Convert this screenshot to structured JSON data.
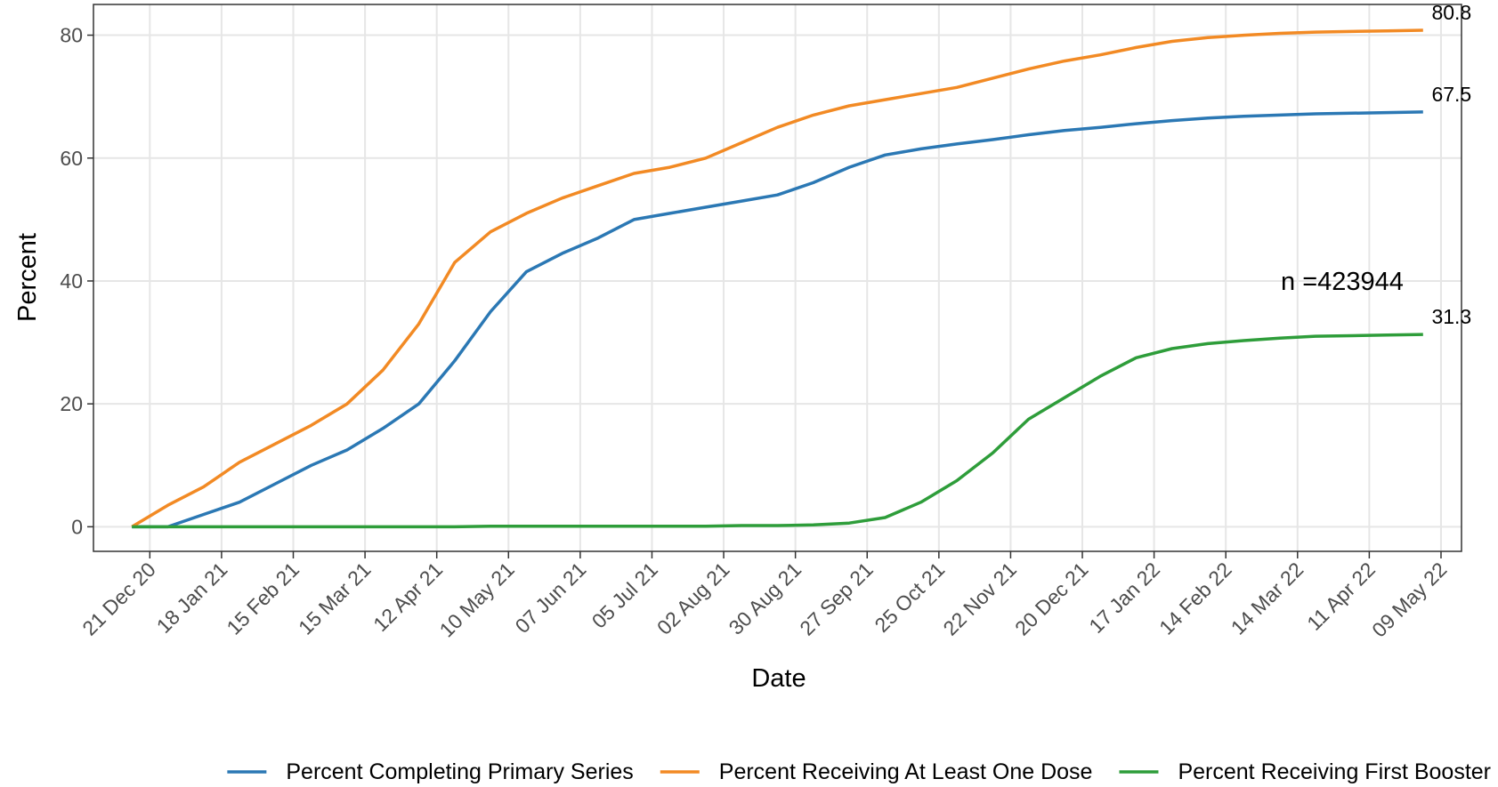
{
  "chart_data": {
    "type": "line",
    "x_label": "Date",
    "y_label": "Percent",
    "annotation": "n =423944",
    "x": [
      "2020-12-14",
      "2020-12-28",
      "2021-01-11",
      "2021-01-25",
      "2021-02-08",
      "2021-02-22",
      "2021-03-08",
      "2021-03-22",
      "2021-04-05",
      "2021-04-19",
      "2021-05-03",
      "2021-05-17",
      "2021-05-31",
      "2021-06-14",
      "2021-06-28",
      "2021-07-12",
      "2021-07-26",
      "2021-08-09",
      "2021-08-23",
      "2021-09-06",
      "2021-09-20",
      "2021-10-04",
      "2021-10-18",
      "2021-11-01",
      "2021-11-15",
      "2021-11-29",
      "2021-12-13",
      "2021-12-27",
      "2022-01-10",
      "2022-01-24",
      "2022-02-07",
      "2022-02-21",
      "2022-03-07",
      "2022-03-21",
      "2022-04-04",
      "2022-04-18",
      "2022-05-02"
    ],
    "series": [
      {
        "name": "Percent Completing Primary Series",
        "color": "#2b78b4",
        "values": [
          0,
          0,
          2,
          4,
          7,
          10,
          12.5,
          16,
          20,
          27,
          35,
          41.5,
          44.5,
          47,
          50,
          51,
          52,
          53,
          54,
          56,
          58.5,
          60.5,
          61.5,
          62.3,
          63,
          63.8,
          64.5,
          65,
          65.6,
          66.1,
          66.5,
          66.8,
          67,
          67.2,
          67.3,
          67.4,
          67.5
        ]
      },
      {
        "name": "Percent Receiving At Least One Dose",
        "color": "#f28a24",
        "values": [
          0,
          3.5,
          6.5,
          10.5,
          13.5,
          16.5,
          20,
          25.5,
          33,
          43,
          48,
          51,
          53.5,
          55.5,
          57.5,
          58.5,
          60,
          62.5,
          65,
          67,
          68.5,
          69.5,
          70.5,
          71.5,
          73,
          74.5,
          75.8,
          76.8,
          78,
          79,
          79.6,
          80,
          80.3,
          80.5,
          80.6,
          80.7,
          80.8
        ]
      },
      {
        "name": "Percent Receiving First Booster",
        "color": "#2e9d3a",
        "values": [
          0,
          0,
          0,
          0,
          0,
          0,
          0,
          0,
          0,
          0,
          0.1,
          0.1,
          0.1,
          0.1,
          0.1,
          0.1,
          0.1,
          0.2,
          0.2,
          0.3,
          0.6,
          1.5,
          4,
          7.5,
          12,
          17.5,
          21,
          24.5,
          27.5,
          29,
          29.8,
          30.3,
          30.7,
          31,
          31.1,
          31.2,
          31.3
        ]
      }
    ],
    "xlim": [
      "2020-11-29",
      "2022-05-17"
    ],
    "xticks": [
      {
        "value": "2020-12-21",
        "label": "21 Dec 20"
      },
      {
        "value": "2021-01-18",
        "label": "18 Jan 21"
      },
      {
        "value": "2021-02-15",
        "label": "15 Feb 21"
      },
      {
        "value": "2021-03-15",
        "label": "15 Mar 21"
      },
      {
        "value": "2021-04-12",
        "label": "12 Apr 21"
      },
      {
        "value": "2021-05-10",
        "label": "10 May 21"
      },
      {
        "value": "2021-06-07",
        "label": "07 Jun 21"
      },
      {
        "value": "2021-07-05",
        "label": "05 Jul 21"
      },
      {
        "value": "2021-08-02",
        "label": "02 Aug 21"
      },
      {
        "value": "2021-08-30",
        "label": "30 Aug 21"
      },
      {
        "value": "2021-09-27",
        "label": "27 Sep 21"
      },
      {
        "value": "2021-10-25",
        "label": "25 Oct 21"
      },
      {
        "value": "2021-11-22",
        "label": "22 Nov 21"
      },
      {
        "value": "2021-12-20",
        "label": "20 Dec 21"
      },
      {
        "value": "2022-01-17",
        "label": "17 Jan 22"
      },
      {
        "value": "2022-02-14",
        "label": "14 Feb 22"
      },
      {
        "value": "2022-03-14",
        "label": "14 Mar 22"
      },
      {
        "value": "2022-04-11",
        "label": "11 Apr 22"
      },
      {
        "value": "2022-05-09",
        "label": "09 May 22"
      }
    ],
    "ylim": [
      -4,
      85
    ],
    "yticks": [
      0,
      20,
      40,
      60,
      80
    ],
    "grid": true,
    "legend": "bottom"
  }
}
